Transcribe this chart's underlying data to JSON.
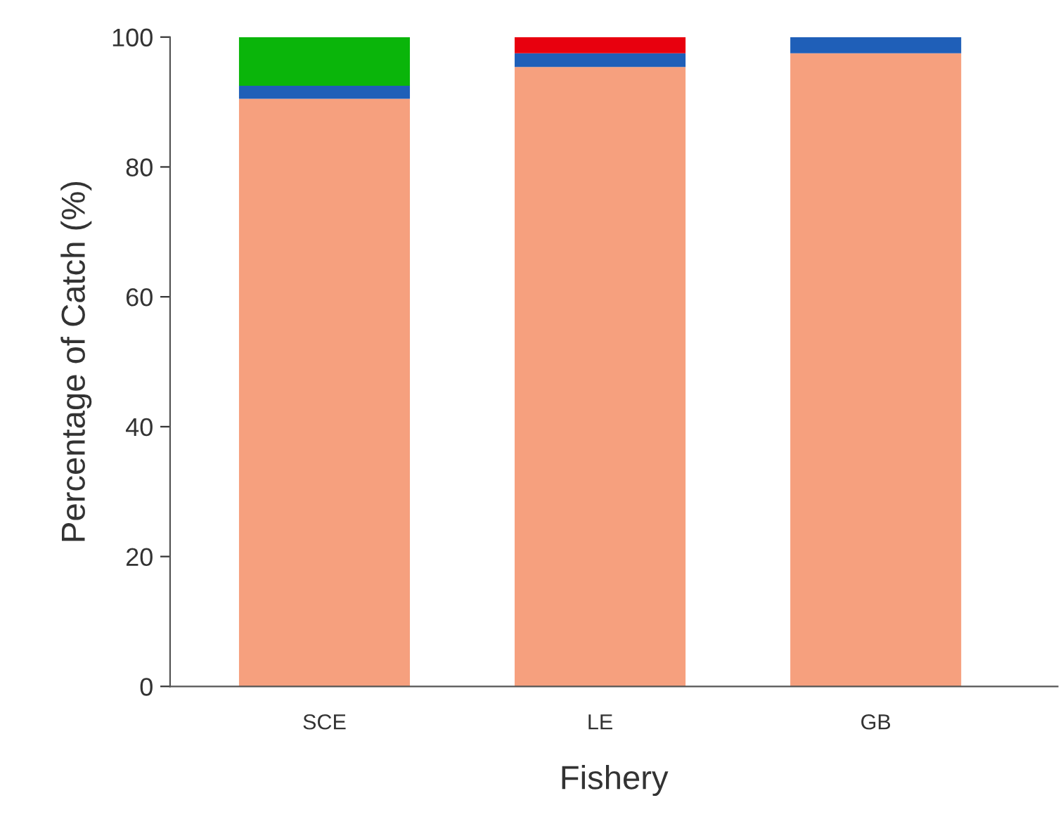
{
  "chart_data": {
    "type": "bar",
    "stacked": true,
    "xlabel": "Fishery",
    "ylabel": "Percentage of Catch (%)",
    "categories": [
      "SCE",
      "LE",
      "GB"
    ],
    "series": [
      {
        "color": "#f6a07e",
        "values": [
          90.5,
          95.4,
          97.5
        ]
      },
      {
        "color": "#1f5fb8",
        "values": [
          2.0,
          2.1,
          2.5
        ]
      },
      {
        "color": "#0ab50a",
        "values": [
          7.5,
          0,
          0
        ]
      },
      {
        "color": "#e8000e",
        "values": [
          0,
          2.5,
          0
        ]
      }
    ],
    "ylim": [
      0,
      100
    ],
    "yticks": [
      0,
      20,
      40,
      60,
      80,
      100
    ],
    "grid": false
  }
}
